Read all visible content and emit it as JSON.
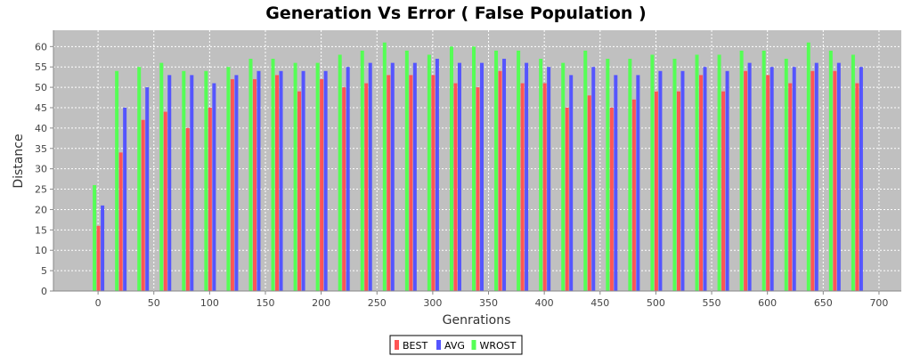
{
  "chart_data": {
    "type": "bar",
    "title": "Generation Vs Error ( False Population )",
    "xlabel": "Genrations",
    "ylabel": "Distance",
    "xlim": [
      -40,
      720
    ],
    "ylim": [
      0,
      64
    ],
    "x_ticks": [
      0,
      50,
      100,
      150,
      200,
      250,
      300,
      350,
      400,
      450,
      500,
      550,
      600,
      650,
      700
    ],
    "y_ticks": [
      0,
      5,
      10,
      15,
      20,
      25,
      30,
      35,
      40,
      45,
      50,
      55,
      60
    ],
    "grid": true,
    "legend_position": "bottom-center",
    "x": [
      0,
      20,
      40,
      60,
      80,
      100,
      120,
      140,
      160,
      180,
      200,
      220,
      240,
      260,
      280,
      300,
      320,
      340,
      360,
      380,
      400,
      420,
      440,
      460,
      480,
      500,
      520,
      540,
      560,
      580,
      600,
      620,
      640,
      660,
      680
    ],
    "series": [
      {
        "name": "BEST",
        "color": "#ff5555",
        "values": [
          16,
          34,
          42,
          44,
          40,
          45,
          52,
          52,
          53,
          49,
          52,
          50,
          51,
          53,
          53,
          53,
          51,
          50,
          54,
          51,
          51,
          45,
          48,
          45,
          47,
          49,
          49,
          53,
          49,
          54,
          53,
          51,
          54,
          54,
          51
        ]
      },
      {
        "name": "AVG",
        "color": "#5555ff",
        "values": [
          21,
          45,
          50,
          53,
          53,
          51,
          53,
          54,
          54,
          54,
          54,
          55,
          56,
          56,
          56,
          57,
          56,
          56,
          57,
          56,
          55,
          53,
          55,
          53,
          53,
          54,
          54,
          55,
          54,
          56,
          55,
          55,
          56,
          56,
          55
        ]
      },
      {
        "name": "WROST",
        "color": "#55ff55",
        "values": [
          26,
          54,
          55,
          56,
          54,
          54,
          55,
          57,
          57,
          56,
          56,
          58,
          59,
          61,
          59,
          58,
          60,
          60,
          59,
          59,
          57,
          56,
          59,
          57,
          57,
          58,
          57,
          58,
          58,
          59,
          59,
          57,
          61,
          59,
          58
        ]
      }
    ]
  }
}
